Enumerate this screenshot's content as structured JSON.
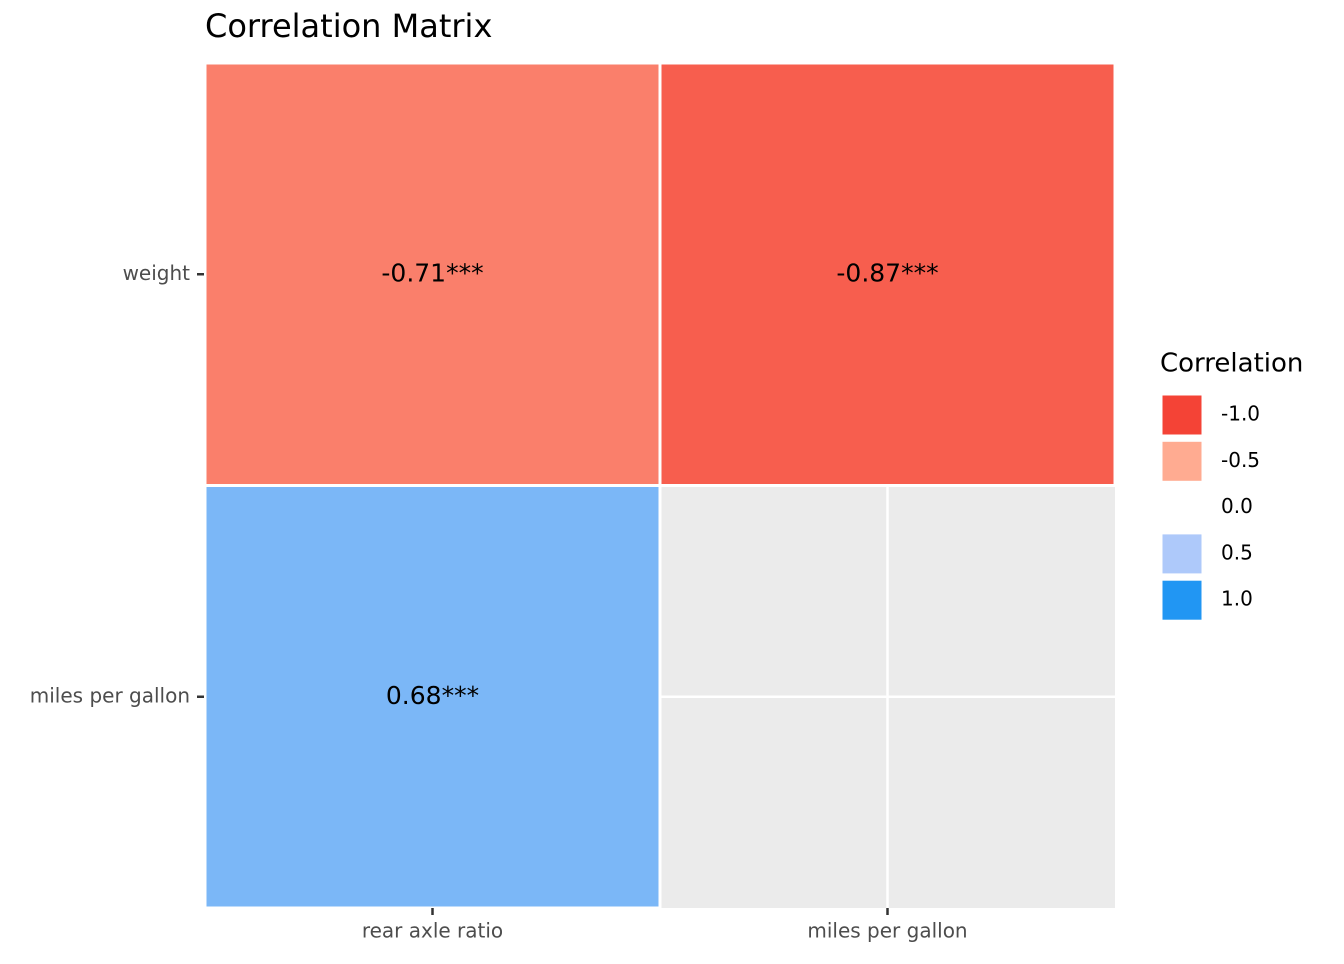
{
  "chart_data": {
    "type": "heatmap",
    "title": "Correlation Matrix",
    "x_categories": [
      "rear axle ratio",
      "miles per gallon"
    ],
    "y_categories": [
      "weight",
      "miles per gallon"
    ],
    "values": [
      [
        -0.71,
        -0.87
      ],
      [
        0.68,
        null
      ]
    ],
    "value_labels": [
      [
        "-0.71***",
        "-0.87***"
      ],
      [
        "0.68***",
        null
      ]
    ],
    "legend": {
      "title": "Correlation",
      "ticks": [
        {
          "value": -1,
          "label": "-1.0"
        },
        {
          "value": -0.5,
          "label": "-0.5"
        },
        {
          "value": 0,
          "label": "0.0"
        },
        {
          "value": 0.5,
          "label": "0.5"
        },
        {
          "value": 1,
          "label": "1.0"
        }
      ],
      "colors": [
        "#f44336",
        "#ffab91",
        "#ffffff",
        "#aec9fa",
        "#2196f3"
      ]
    },
    "grid": true,
    "background": "#ebebeb"
  }
}
